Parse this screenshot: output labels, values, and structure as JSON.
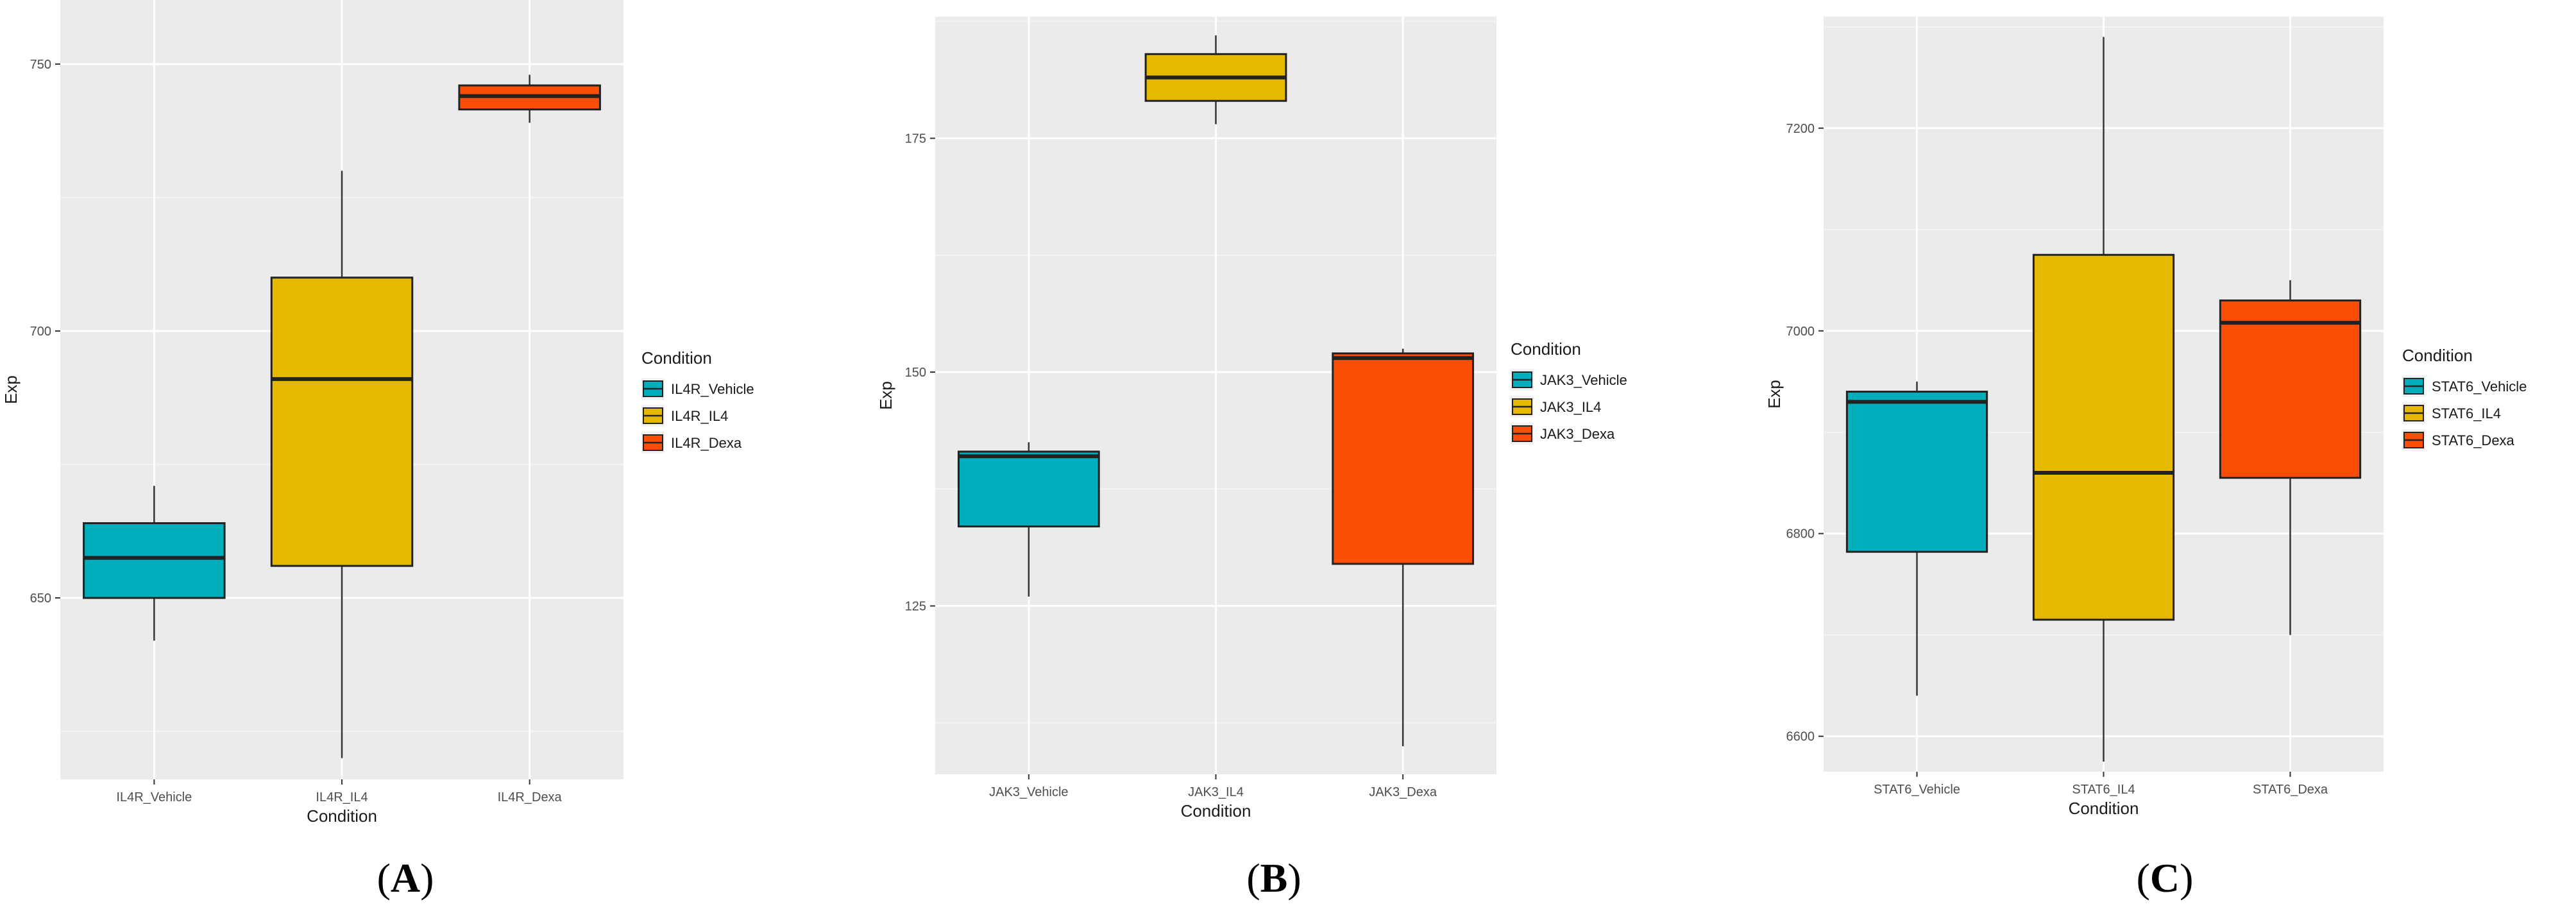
{
  "chart_data": [
    {
      "type": "boxplot",
      "panel_label": {
        "open": "(",
        "letter": "A",
        "close": ")"
      },
      "xlabel": "Condition",
      "ylabel": "Exp",
      "ylim": [
        616,
        762
      ],
      "yticks": [
        650,
        700,
        750
      ],
      "legend_title": "Condition",
      "legend_placement": "right",
      "grid": true,
      "categories": [
        "IL4R_Vehicle",
        "IL4R_IL4",
        "IL4R_Dexa"
      ],
      "boxes": [
        {
          "name": "IL4R_Vehicle",
          "color": "#00AFBB",
          "min": 642,
          "q1": 650,
          "median": 657.5,
          "q3": 664,
          "max": 671
        },
        {
          "name": "IL4R_IL4",
          "color": "#E7B800",
          "min": 620,
          "q1": 656,
          "median": 691,
          "q3": 710,
          "max": 730
        },
        {
          "name": "IL4R_Dexa",
          "color": "#FC4E07",
          "min": 739,
          "q1": 741.5,
          "median": 744,
          "q3": 746,
          "max": 748
        }
      ]
    },
    {
      "type": "boxplot",
      "panel_label": {
        "open": "(",
        "letter": "B",
        "close": ")"
      },
      "xlabel": "Condition",
      "ylabel": "Exp",
      "ylim": [
        107,
        188
      ],
      "yticks": [
        125,
        150,
        175
      ],
      "legend_title": "Condition",
      "legend_placement": "right",
      "grid": true,
      "categories": [
        "JAK3_Vehicle",
        "JAK3_IL4",
        "JAK3_Dexa"
      ],
      "boxes": [
        {
          "name": "JAK3_Vehicle",
          "color": "#00AFBB",
          "min": 126,
          "q1": 133.5,
          "median": 141,
          "q3": 141.5,
          "max": 142.5
        },
        {
          "name": "JAK3_IL4",
          "color": "#E7B800",
          "min": 176.5,
          "q1": 179,
          "median": 181.5,
          "q3": 184,
          "max": 186
        },
        {
          "name": "JAK3_Dexa",
          "color": "#FC4E07",
          "min": 110,
          "q1": 129.5,
          "median": 151.5,
          "q3": 152,
          "max": 152.5
        }
      ]
    },
    {
      "type": "boxplot",
      "panel_label": {
        "open": "(",
        "letter": "C",
        "close": ")"
      },
      "xlabel": "Condition",
      "ylabel": "Exp",
      "ylim": [
        6565,
        7310
      ],
      "yticks": [
        6600,
        6800,
        7000,
        7200
      ],
      "legend_title": "Condition",
      "legend_placement": "right",
      "grid": true,
      "categories": [
        "STAT6_Vehicle",
        "STAT6_IL4",
        "STAT6_Dexa"
      ],
      "boxes": [
        {
          "name": "STAT6_Vehicle",
          "color": "#00AFBB",
          "min": 6640,
          "q1": 6782,
          "median": 6930,
          "q3": 6940,
          "max": 6950
        },
        {
          "name": "STAT6_IL4",
          "color": "#E7B800",
          "min": 6575,
          "q1": 6715,
          "median": 6860,
          "q3": 7075,
          "max": 7290
        },
        {
          "name": "STAT6_Dexa",
          "color": "#FC4E07",
          "min": 6700,
          "q1": 6855,
          "median": 7008,
          "q3": 7030,
          "max": 7050
        }
      ]
    }
  ]
}
